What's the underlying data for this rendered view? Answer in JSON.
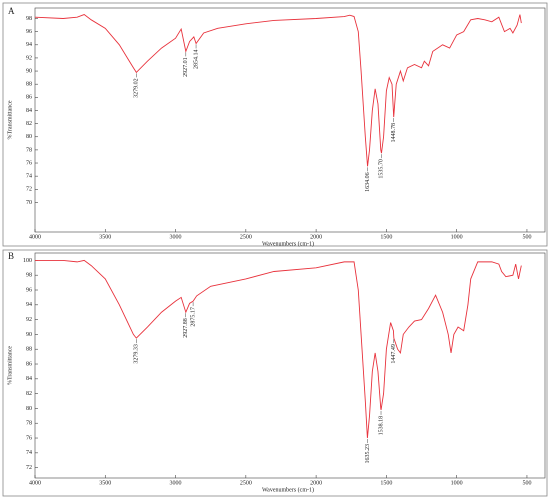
{
  "chart_data": [
    {
      "type": "line",
      "label": "A",
      "y_label": "%Transmittance",
      "x_label": "Wavenumbers (cm-1)",
      "xlim": [
        4000,
        400
      ],
      "ylim": [
        65.5,
        99.6
      ],
      "xticks": [
        4000,
        3500,
        3000,
        2500,
        2000,
        1500,
        1000,
        500
      ],
      "yticks": [
        70,
        72,
        74,
        76,
        78,
        80,
        82,
        84,
        86,
        88,
        90,
        92,
        94,
        96,
        98
      ],
      "x": [
        4000,
        3800,
        3700,
        3650,
        3600,
        3500,
        3400,
        3300,
        3279,
        3200,
        3100,
        3000,
        2960,
        2927,
        2900,
        2870,
        2854,
        2800,
        2700,
        2500,
        2300,
        2000,
        1800,
        1760,
        1730,
        1700,
        1680,
        1650,
        1634,
        1620,
        1600,
        1580,
        1560,
        1540,
        1535,
        1520,
        1500,
        1480,
        1460,
        1448,
        1430,
        1400,
        1380,
        1350,
        1300,
        1250,
        1230,
        1200,
        1170,
        1100,
        1050,
        1000,
        950,
        900,
        850,
        800,
        750,
        700,
        660,
        620,
        600,
        570,
        550,
        540
      ],
      "series": [
        {
          "color": "#e8323c",
          "values": [
            98.2,
            98.0,
            98.2,
            98.6,
            97.8,
            96.5,
            94,
            90.5,
            89.8,
            91.5,
            93.5,
            95,
            96.4,
            93,
            94.5,
            95.2,
            94.2,
            95.8,
            96.5,
            97.2,
            97.7,
            98.0,
            98.3,
            98.5,
            98.3,
            96,
            90,
            80,
            75.5,
            78,
            84,
            87.3,
            85,
            78,
            77.5,
            80,
            87,
            89,
            88,
            83,
            88,
            90,
            88.5,
            90.5,
            91,
            90.5,
            91.5,
            90.8,
            93,
            94,
            93.5,
            95.5,
            96,
            97.8,
            98,
            97.8,
            97.5,
            98.2,
            96,
            96.5,
            95.8,
            97,
            98.6,
            97.3
          ]
        }
      ],
      "annotations": [
        {
          "x": 3279.02,
          "y": 89.8,
          "label": "3279.02"
        },
        {
          "x": 2927.01,
          "y": 93,
          "label": "2927.01"
        },
        {
          "x": 2854.14,
          "y": 94.2,
          "label": "2854.14"
        },
        {
          "x": 1634.06,
          "y": 75.5,
          "label": "1634.06"
        },
        {
          "x": 1535.7,
          "y": 77.5,
          "label": "1535.70"
        },
        {
          "x": 1448.78,
          "y": 83,
          "label": "1448.78"
        }
      ]
    },
    {
      "type": "line",
      "label": "B",
      "y_label": "%Transmittance",
      "x_label": "Wavenumbers (cm-1)",
      "xlim": [
        4000,
        400
      ],
      "ylim": [
        70.6,
        101
      ],
      "xticks": [
        4000,
        3500,
        3000,
        2500,
        2000,
        1500,
        1000,
        500
      ],
      "yticks": [
        72,
        74,
        76,
        78,
        80,
        82,
        84,
        86,
        88,
        90,
        92,
        94,
        96,
        98,
        100
      ],
      "x": [
        4000,
        3800,
        3700,
        3650,
        3600,
        3500,
        3400,
        3300,
        3279,
        3200,
        3100,
        3000,
        2960,
        2927,
        2900,
        2875,
        2850,
        2750,
        2500,
        2300,
        2000,
        1800,
        1730,
        1700,
        1680,
        1650,
        1635,
        1620,
        1600,
        1580,
        1560,
        1540,
        1538,
        1520,
        1500,
        1470,
        1450,
        1447,
        1420,
        1400,
        1380,
        1340,
        1300,
        1250,
        1200,
        1150,
        1100,
        1060,
        1040,
        1020,
        990,
        950,
        920,
        900,
        850,
        750,
        700,
        680,
        650,
        600,
        580,
        560,
        540
      ],
      "series": [
        {
          "color": "#e8323c",
          "values": [
            100,
            100,
            99.8,
            100,
            99.3,
            97.5,
            94,
            90,
            89.5,
            91,
            93,
            94.5,
            95,
            93,
            94.2,
            94.5,
            95.2,
            96.5,
            97.5,
            98.5,
            99,
            99.8,
            99.8,
            96,
            90,
            81,
            76,
            79,
            85,
            87.5,
            85,
            80,
            79.8,
            82,
            88,
            91.6,
            90.5,
            89.5,
            88,
            87.5,
            90,
            91,
            91.8,
            92,
            93.5,
            95.3,
            93,
            90,
            87.5,
            90,
            91,
            90.5,
            94,
            97.5,
            99.8,
            99.8,
            99.5,
            98.5,
            97.8,
            98,
            99.5,
            97.5,
            99.3
          ]
        }
      ],
      "annotations": [
        {
          "x": 3279.33,
          "y": 89.5,
          "label": "3279.33"
        },
        {
          "x": 2927.88,
          "y": 93,
          "label": "2927.88"
        },
        {
          "x": 2875.17,
          "y": 94.5,
          "label": "2875.17"
        },
        {
          "x": 1635.23,
          "y": 76,
          "label": "1635.23"
        },
        {
          "x": 1538.18,
          "y": 79.8,
          "label": "1538.18"
        },
        {
          "x": 1447.49,
          "y": 89.5,
          "label": "1447.49"
        }
      ]
    }
  ]
}
